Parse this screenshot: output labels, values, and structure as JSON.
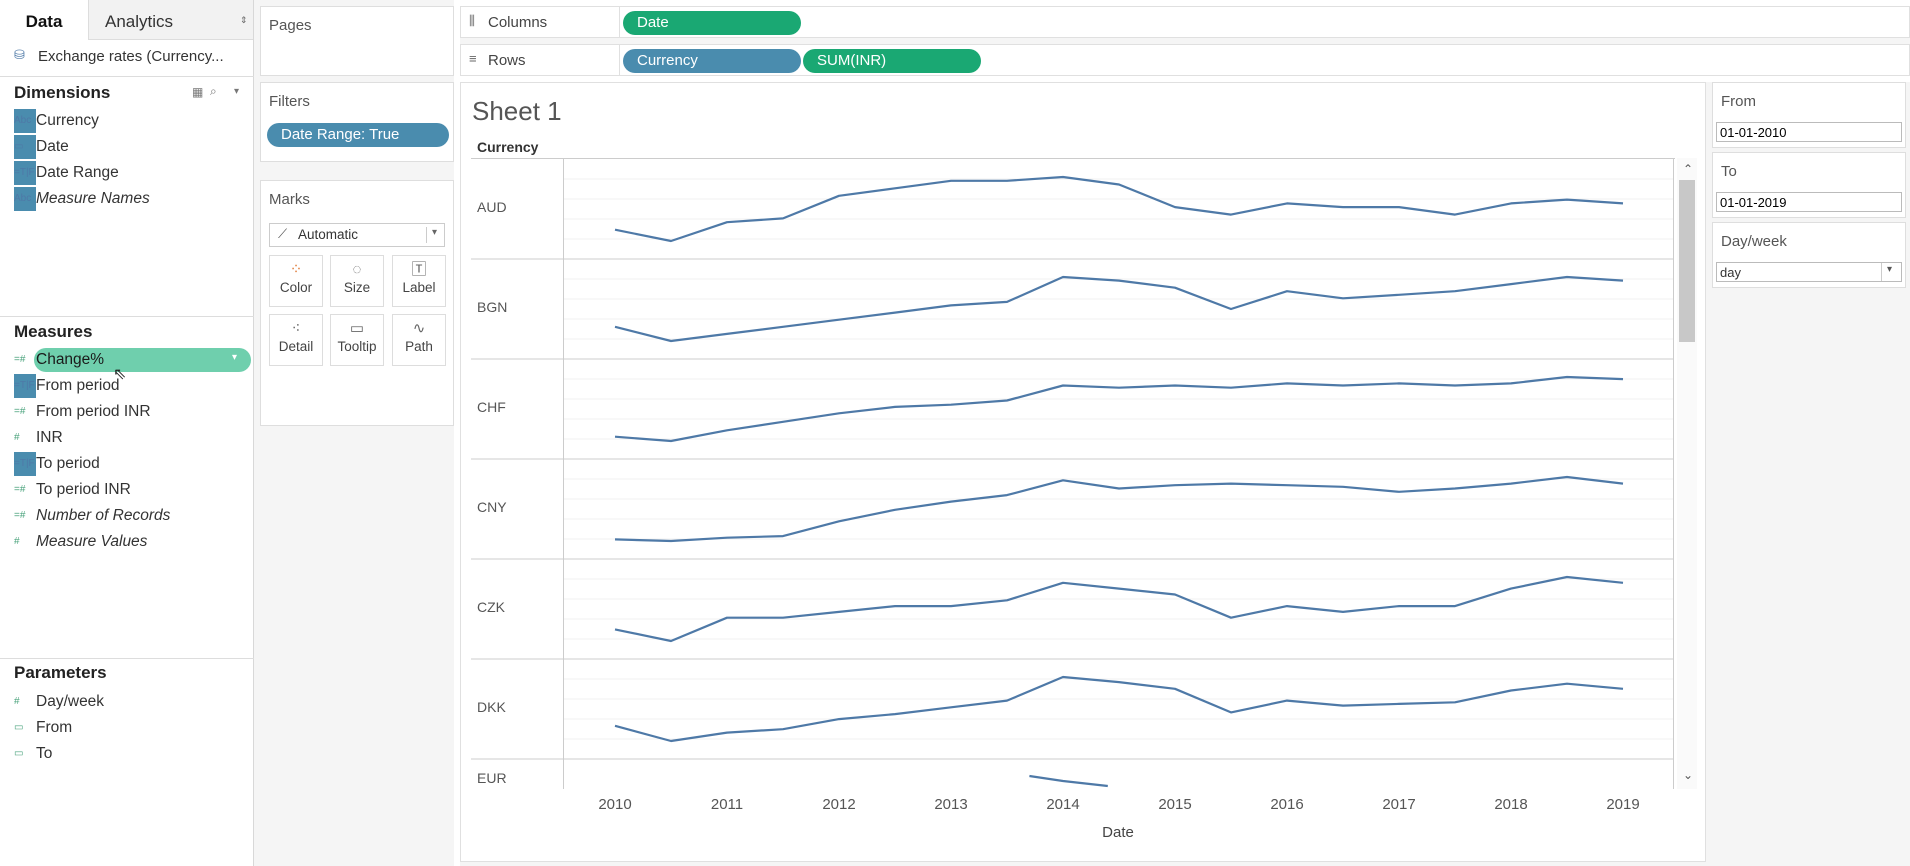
{
  "data_pane": {
    "tabs": [
      {
        "label": "Data"
      },
      {
        "label": "Analytics"
      }
    ],
    "datasource": "Exchange rates (Currency...",
    "dimensions_title": "Dimensions",
    "dimensions": [
      {
        "icon": "Abc",
        "label": "Currency",
        "italic": false
      },
      {
        "icon": "date",
        "label": "Date",
        "italic": false
      },
      {
        "icon": "=T|F",
        "label": "Date Range",
        "italic": false
      },
      {
        "icon": "Abc",
        "label": "Measure Names",
        "italic": true
      }
    ],
    "measures_title": "Measures",
    "measures": [
      {
        "icon": "=#",
        "label": "Change%",
        "selected": true
      },
      {
        "icon": "=T|F",
        "label": "From period"
      },
      {
        "icon": "=#",
        "label": "From period INR"
      },
      {
        "icon": "#",
        "label": "INR"
      },
      {
        "icon": "=T|F",
        "label": "To period"
      },
      {
        "icon": "=#",
        "label": "To period INR"
      },
      {
        "icon": "=#",
        "label": "Number of Records",
        "italic": true
      },
      {
        "icon": "#",
        "label": "Measure Values",
        "italic": true
      }
    ],
    "parameters_title": "Parameters",
    "parameters": [
      {
        "icon": "#",
        "label": "Day/week"
      },
      {
        "icon": "date",
        "label": "From"
      },
      {
        "icon": "date",
        "label": "To"
      }
    ]
  },
  "shelves": {
    "pages_label": "Pages",
    "columns_label": "Columns",
    "rows_label": "Rows",
    "columns_pills": [
      "Date"
    ],
    "rows_pills": [
      "Currency",
      "SUM(INR)"
    ],
    "filters_label": "Filters",
    "filters_pills": [
      "Date Range: True"
    ],
    "marks_label": "Marks",
    "marks_type": "Automatic",
    "mark_buttons": [
      {
        "label": "Color",
        "icon": "color-icon"
      },
      {
        "label": "Size",
        "icon": "size-icon"
      },
      {
        "label": "Label",
        "icon": "label-icon"
      },
      {
        "label": "Detail",
        "icon": "detail-icon"
      },
      {
        "label": "Tooltip",
        "icon": "tooltip-icon"
      },
      {
        "label": "Path",
        "icon": "path-icon"
      }
    ]
  },
  "parameter_controls": {
    "from_label": "From",
    "from_value": "01-01-2010",
    "to_label": "To",
    "to_value": "01-01-2019",
    "dayweek_label": "Day/week",
    "dayweek_value": "day"
  },
  "colors": {
    "line": "#4e79a7",
    "pill_green": "#1aa873",
    "pill_blue": "#4a8cae",
    "selected_measure": "#6fcfad"
  },
  "chart_data": {
    "type": "line",
    "title": "Sheet 1",
    "row_header": "Currency",
    "xlabel": "Date",
    "x_ticks": [
      "2010",
      "2011",
      "2012",
      "2013",
      "2014",
      "2015",
      "2016",
      "2017",
      "2018",
      "2019"
    ],
    "xlim": [
      2010,
      2019
    ],
    "series": [
      {
        "name": "AUD",
        "years": [
          2010,
          2010.5,
          2011,
          2011.5,
          2012,
          2012.5,
          2013,
          2013.5,
          2014,
          2014.5,
          2015,
          2015.5,
          2016,
          2016.5,
          2017,
          2017.5,
          2018,
          2018.5,
          2019
        ],
        "values": [
          44,
          41,
          46,
          47,
          53,
          55,
          57,
          57,
          58,
          56,
          50,
          48,
          51,
          50,
          50,
          48,
          51,
          52,
          51
        ]
      },
      {
        "name": "BGN",
        "years": [
          2010,
          2010.5,
          2011,
          2011.5,
          2012,
          2012.5,
          2013,
          2013.5,
          2014,
          2014.5,
          2015,
          2015.5,
          2016,
          2016.5,
          2017,
          2017.5,
          2018,
          2018.5,
          2019
        ],
        "values": [
          33,
          29,
          31,
          33,
          35,
          37,
          39,
          40,
          47,
          46,
          44,
          38,
          43,
          41,
          42,
          43,
          45,
          47,
          46
        ]
      },
      {
        "name": "CHF",
        "years": [
          2010,
          2010.5,
          2011,
          2011.5,
          2012,
          2012.5,
          2013,
          2013.5,
          2014,
          2014.5,
          2015,
          2015.5,
          2016,
          2016.5,
          2017,
          2017.5,
          2018,
          2018.5,
          2019
        ],
        "values": [
          42,
          40,
          45,
          49,
          53,
          56,
          57,
          59,
          66,
          65,
          66,
          65,
          67,
          66,
          67,
          66,
          67,
          70,
          69
        ]
      },
      {
        "name": "CNY",
        "years": [
          2010,
          2010.5,
          2011,
          2011.5,
          2012,
          2012.5,
          2013,
          2013.5,
          2014,
          2014.5,
          2015,
          2015.5,
          2016,
          2016.5,
          2017,
          2017.5,
          2018,
          2018.5,
          2019
        ],
        "values": [
          6.8,
          6.7,
          6.9,
          7.0,
          7.9,
          8.6,
          9.1,
          9.5,
          10.4,
          9.9,
          10.1,
          10.2,
          10.1,
          10.0,
          9.7,
          9.9,
          10.2,
          10.6,
          10.2
        ]
      },
      {
        "name": "CZK",
        "years": [
          2010,
          2010.5,
          2011,
          2011.5,
          2012,
          2012.5,
          2013,
          2013.5,
          2014,
          2014.5,
          2015,
          2015.5,
          2016,
          2016.5,
          2017,
          2017.5,
          2018,
          2018.5,
          2019
        ],
        "values": [
          2.4,
          2.2,
          2.6,
          2.6,
          2.7,
          2.8,
          2.8,
          2.9,
          3.2,
          3.1,
          3.0,
          2.6,
          2.8,
          2.7,
          2.8,
          2.8,
          3.1,
          3.3,
          3.2
        ]
      },
      {
        "name": "DKK",
        "years": [
          2010,
          2010.5,
          2011,
          2011.5,
          2012,
          2012.5,
          2013,
          2013.5,
          2014,
          2014.5,
          2015,
          2015.5,
          2016,
          2016.5,
          2017,
          2017.5,
          2018,
          2018.5,
          2019
        ],
        "values": [
          8.8,
          7.9,
          8.4,
          8.6,
          9.2,
          9.5,
          9.9,
          10.3,
          11.7,
          11.4,
          11.0,
          9.6,
          10.3,
          10.0,
          10.1,
          10.2,
          10.9,
          11.3,
          11.0
        ]
      },
      {
        "name": "EUR",
        "years": [
          2013.7,
          2014,
          2014.4
        ],
        "values": [
          82,
          80,
          78
        ]
      }
    ]
  }
}
